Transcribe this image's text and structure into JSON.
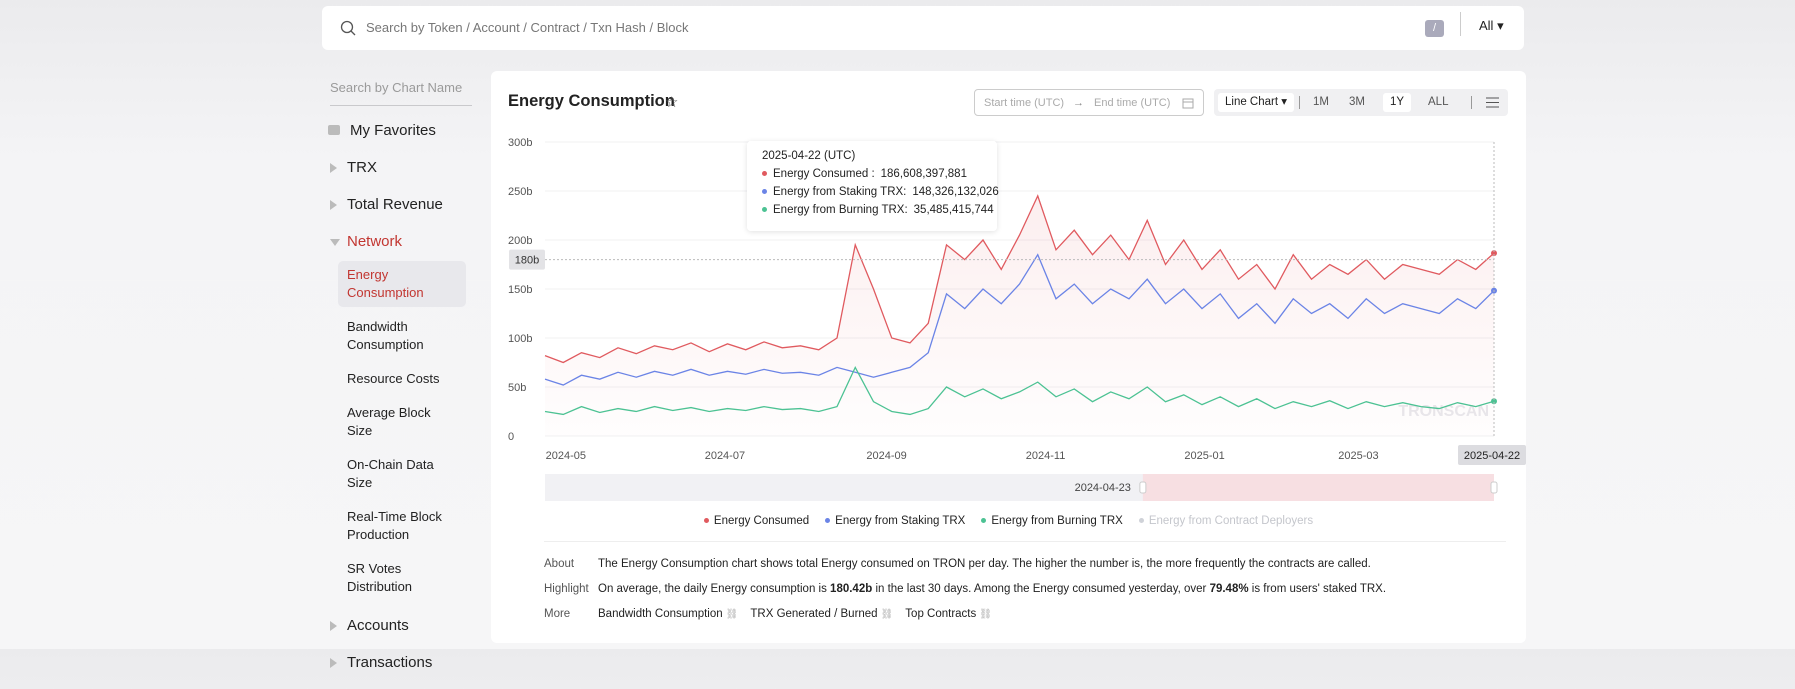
{
  "search": {
    "placeholder": "Search by Token / Account / Contract / Txn Hash / Block",
    "key": "/",
    "scope": "All"
  },
  "sidebar": {
    "search_placeholder": "Search by Chart Name",
    "items": [
      {
        "label": "My Favorites"
      },
      {
        "label": "TRX"
      },
      {
        "label": "Total Revenue"
      },
      {
        "label": "Network",
        "children": [
          "Energy Consumption",
          "Bandwidth Consumption",
          "Resource Costs",
          "Average Block Size",
          "On-Chain Data Size",
          "Real-Time Block Production",
          "SR Votes Distribution"
        ]
      },
      {
        "label": "Accounts"
      },
      {
        "label": "Transactions"
      }
    ]
  },
  "header": {
    "title": "Energy Consumption",
    "start_placeholder": "Start time (UTC)",
    "end_placeholder": "End time (UTC)",
    "chart_kind": "Line Chart",
    "ranges": [
      "1M",
      "3M",
      "1Y",
      "ALL"
    ],
    "active_range": "1Y"
  },
  "chart_data": {
    "type": "line",
    "x": [
      "2024-04-23",
      "2024-04-30",
      "2024-05-07",
      "2024-05-14",
      "2024-05-21",
      "2024-05-28",
      "2024-06-04",
      "2024-06-11",
      "2024-06-18",
      "2024-06-25",
      "2024-07-02",
      "2024-07-09",
      "2024-07-16",
      "2024-07-23",
      "2024-07-30",
      "2024-08-06",
      "2024-08-13",
      "2024-08-20",
      "2024-08-27",
      "2024-09-03",
      "2024-09-10",
      "2024-09-17",
      "2024-09-24",
      "2024-10-01",
      "2024-10-08",
      "2024-10-15",
      "2024-10-22",
      "2024-10-29",
      "2024-11-05",
      "2024-11-12",
      "2024-11-19",
      "2024-11-26",
      "2024-12-03",
      "2024-12-10",
      "2024-12-17",
      "2024-12-24",
      "2024-12-31",
      "2025-01-07",
      "2025-01-14",
      "2025-01-21",
      "2025-01-28",
      "2025-02-04",
      "2025-02-11",
      "2025-02-18",
      "2025-02-25",
      "2025-03-04",
      "2025-03-11",
      "2025-03-18",
      "2025-03-25",
      "2025-04-01",
      "2025-04-08",
      "2025-04-15",
      "2025-04-22"
    ],
    "series": [
      {
        "name": "Energy Consumed",
        "color": "#e05a5f",
        "values": [
          82,
          75,
          85,
          80,
          90,
          84,
          92,
          88,
          95,
          86,
          94,
          88,
          96,
          90,
          92,
          88,
          100,
          195,
          150,
          100,
          95,
          115,
          195,
          180,
          200,
          170,
          205,
          245,
          190,
          210,
          185,
          205,
          180,
          220,
          175,
          200,
          170,
          190,
          160,
          175,
          150,
          185,
          160,
          175,
          165,
          180,
          160,
          175,
          170,
          165,
          180,
          170,
          186.608397881
        ]
      },
      {
        "name": "Energy from Staking TRX",
        "color": "#6b84e6",
        "values": [
          58,
          52,
          62,
          58,
          65,
          60,
          66,
          62,
          68,
          62,
          66,
          63,
          68,
          64,
          65,
          62,
          70,
          65,
          60,
          65,
          70,
          85,
          145,
          130,
          150,
          135,
          155,
          185,
          140,
          155,
          135,
          150,
          140,
          160,
          135,
          150,
          130,
          145,
          120,
          135,
          115,
          140,
          125,
          135,
          120,
          140,
          125,
          135,
          130,
          125,
          140,
          130,
          148.326132026
        ]
      },
      {
        "name": "Energy from Burning TRX",
        "color": "#4cc293",
        "values": [
          25,
          22,
          30,
          24,
          28,
          25,
          30,
          26,
          29,
          25,
          28,
          26,
          30,
          27,
          28,
          25,
          30,
          70,
          35,
          25,
          22,
          28,
          50,
          40,
          48,
          38,
          45,
          55,
          40,
          48,
          35,
          45,
          38,
          50,
          35,
          42,
          32,
          40,
          30,
          38,
          28,
          35,
          30,
          36,
          28,
          35,
          30,
          34,
          30,
          28,
          34,
          30,
          35.485415744
        ]
      },
      {
        "name": "Energy from Contract Deployers",
        "color": "#cfd2d8",
        "visible": false
      }
    ],
    "xlim": [
      "2024-04-23",
      "2025-04-22"
    ],
    "xticks": [
      {
        "value": "2024-05-01",
        "label": "2024-05"
      },
      {
        "value": "2024-07-01",
        "label": "2024-07"
      },
      {
        "value": "2024-09-01",
        "label": "2024-09"
      },
      {
        "value": "2024-11-01",
        "label": "2024-11"
      },
      {
        "value": "2025-01-01",
        "label": "2025-01"
      },
      {
        "value": "2025-03-01",
        "label": "2025-03"
      }
    ],
    "ylim": [
      0,
      300
    ],
    "yticks": [
      0,
      {
        "value": 50,
        "label": "50b"
      },
      {
        "value": 100,
        "label": "100b"
      },
      {
        "value": 150,
        "label": "150b"
      },
      {
        "value": 200,
        "label": "200b"
      },
      {
        "value": 250,
        "label": "250b"
      },
      {
        "value": 300,
        "label": "300b"
      }
    ],
    "grid": true,
    "crosshair": {
      "x": "2025-04-22",
      "y": {
        "value": 180,
        "label": "180b"
      }
    },
    "tooltip": {
      "title": "2025-04-22 (UTC)",
      "rows": [
        {
          "label": "Energy Consumed :",
          "value": "186,608,397,881"
        },
        {
          "label": "Energy from Staking TRX:",
          "value": "148,326,132,026"
        },
        {
          "label": "Energy from Burning TRX:",
          "value": "35,485,415,744"
        }
      ]
    },
    "slider": {
      "start": "2024-04-23"
    },
    "watermark": "TRONSCAN"
  },
  "info": [
    {
      "label": "About",
      "parts": [
        {
          "text": "The Energy Consumption chart shows total Energy consumed on TRON per day. The higher the number is, the more frequently the contracts are called."
        }
      ]
    },
    {
      "label": "Highlight",
      "parts": [
        {
          "text": "On average, the daily Energy consumption is "
        },
        {
          "text": "180.42b",
          "bold": true
        },
        {
          "text": " in the last 30 days.  Among the Energy consumed yesterday, over "
        },
        {
          "text": "79.48%",
          "bold": true
        },
        {
          "text": " is from users' staked TRX."
        }
      ]
    },
    {
      "label": "More",
      "links": [
        "Bandwidth Consumption",
        "TRX Generated / Burned",
        "Top Contracts"
      ]
    }
  ]
}
